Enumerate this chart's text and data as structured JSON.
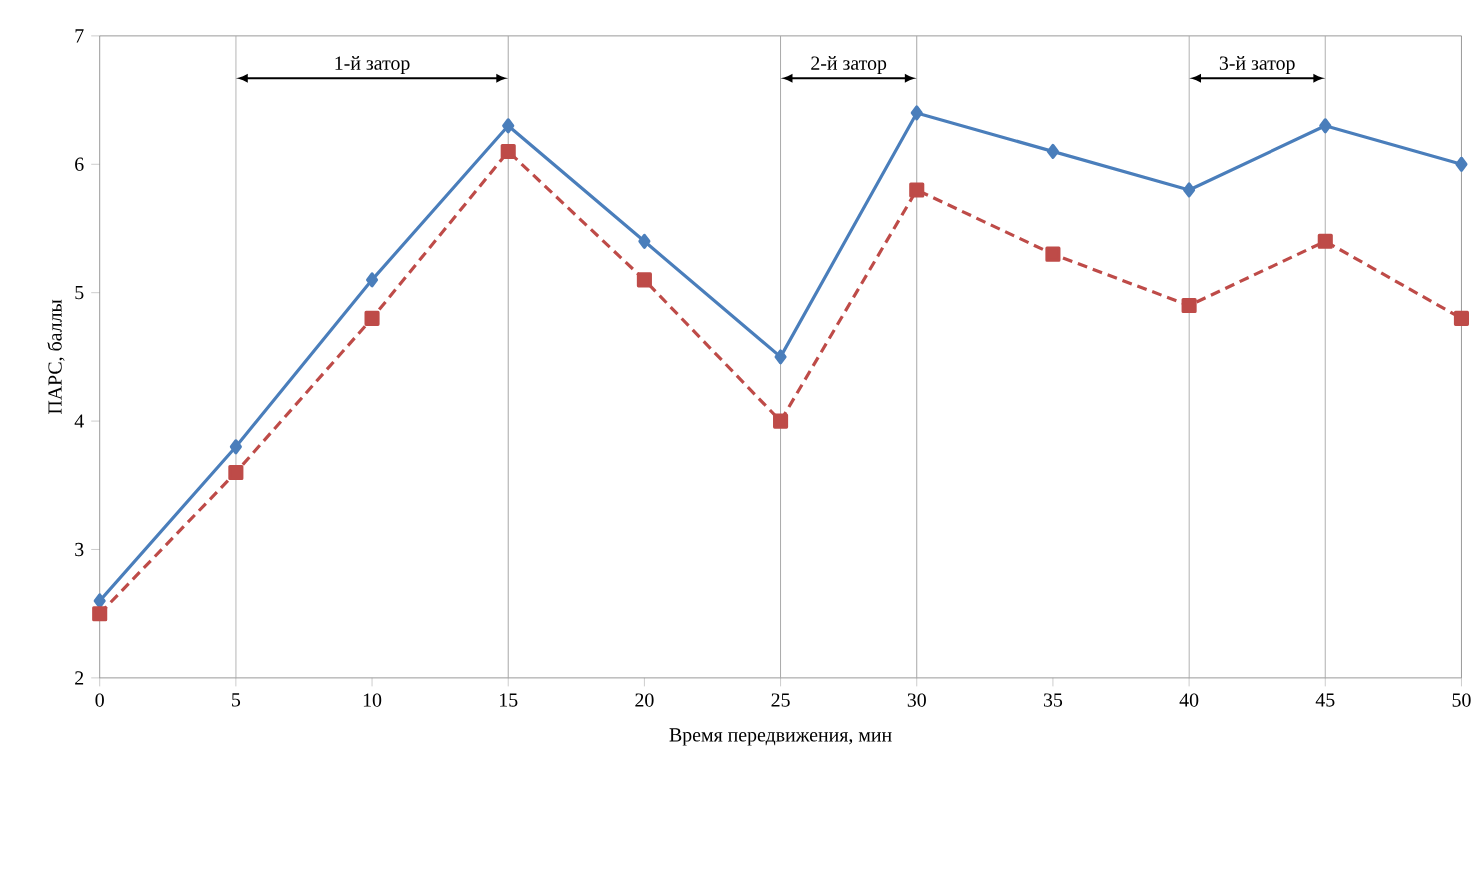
{
  "chart_data": {
    "type": "line",
    "xlabel": "Время передвижения, мин",
    "ylabel": "ПАРС, баллы",
    "x": [
      0,
      5,
      10,
      15,
      20,
      25,
      30,
      35,
      40,
      45,
      50
    ],
    "series": [
      {
        "color": "#4a7ebb",
        "marker": "diamond",
        "line_style": "solid",
        "values": [
          2.6,
          3.8,
          5.1,
          6.3,
          5.4,
          4.5,
          6.4,
          6.1,
          5.8,
          6.3,
          6.0
        ]
      },
      {
        "color": "#be4b48",
        "marker": "square",
        "line_style": "dashed",
        "values": [
          2.5,
          3.6,
          4.8,
          6.1,
          5.1,
          4.0,
          5.8,
          5.3,
          4.9,
          5.4,
          4.8
        ]
      }
    ],
    "xlim": [
      0,
      50
    ],
    "ylim": [
      2,
      7
    ],
    "xticks": [
      0,
      5,
      10,
      15,
      20,
      25,
      30,
      35,
      40,
      45,
      50
    ],
    "yticks": [
      2,
      3,
      4,
      5,
      6,
      7
    ],
    "grid": false,
    "legend": false,
    "ref_lines": [
      {
        "axis": "x",
        "value": 5
      },
      {
        "axis": "x",
        "value": 15
      },
      {
        "axis": "x",
        "value": 25
      },
      {
        "axis": "x",
        "value": 30
      },
      {
        "axis": "x",
        "value": 40
      },
      {
        "axis": "x",
        "value": 45
      }
    ],
    "annotations": [
      "1-й затор",
      "2-й затор",
      "3-й затор"
    ]
  }
}
